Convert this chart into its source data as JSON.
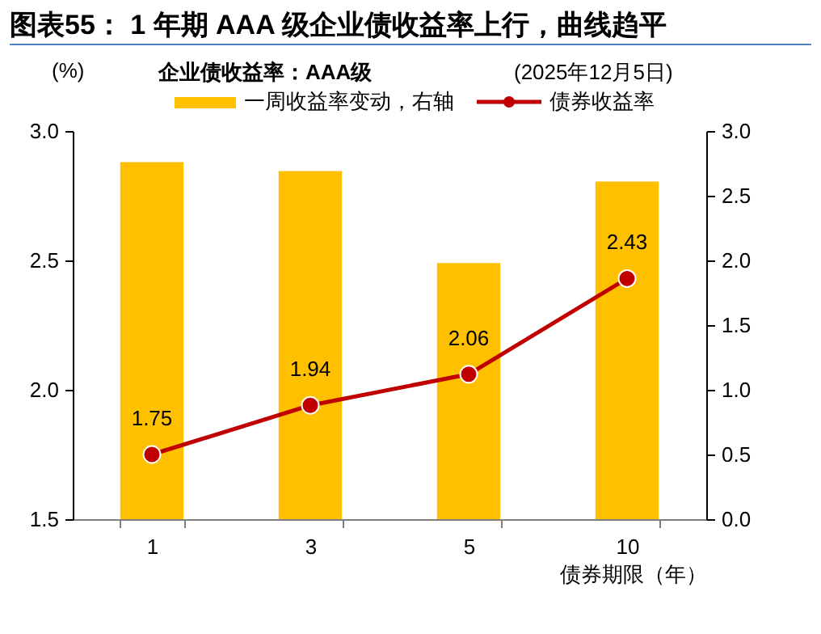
{
  "chart_data": {
    "type": "bar",
    "title": "图表55： 1 年期 AAA 级企业债收益率上行，曲线趋平",
    "subtitle": "企业债收益率：AAA级",
    "annotations": [
      "(2025年12月5日)"
    ],
    "ylabel": "(%)",
    "xlabel": "债券期限（年）",
    "categories": [
      "1",
      "3",
      "5",
      "10"
    ],
    "series": [
      {
        "name": "一周收益率变动，右轴",
        "color": "#ffc000",
        "values": [
          2.76,
          2.69,
          1.98,
          2.61
        ],
        "axis": "y2"
      },
      {
        "name": "债券收益率",
        "type": "line",
        "color": "#c00000",
        "values": [
          1.75,
          1.94,
          2.06,
          2.43
        ],
        "value_labels": [
          "1.75",
          "1.94",
          "2.06",
          "2.43"
        ]
      }
    ],
    "ylim": [
      1.5,
      3.0
    ],
    "yticks": [
      {
        "value": 1.5,
        "label": "1.5"
      },
      {
        "value": 2,
        "label": "2.0"
      },
      {
        "value": 2.5,
        "label": "2.5"
      },
      {
        "value": 3,
        "label": "3.0"
      }
    ],
    "y2lim": [
      0,
      3.0
    ],
    "y2ticks": [
      {
        "value": 0,
        "label": "0.0"
      },
      {
        "value": 0.5,
        "label": "0.5"
      },
      {
        "value": 1,
        "label": "1.0"
      },
      {
        "value": 1.5,
        "label": "1.5"
      },
      {
        "value": 2,
        "label": "2.0"
      },
      {
        "value": 2.5,
        "label": "2.5"
      },
      {
        "value": 3,
        "label": "3.0"
      }
    ],
    "legend": "top",
    "marker": "circle",
    "line_style": "solid",
    "grid": false
  }
}
